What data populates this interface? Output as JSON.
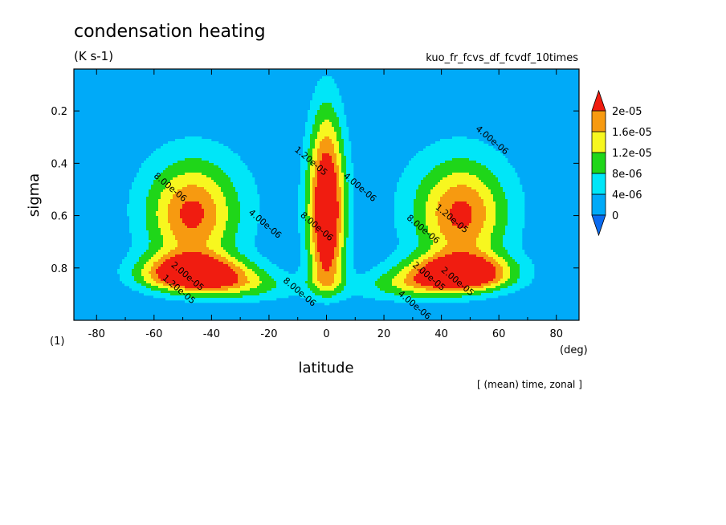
{
  "chart_data": {
    "type": "heatmap",
    "subtype": "filled-contour",
    "title": "condensation heating",
    "units": "(K s-1)",
    "experiment": "kuo_fr_fcvs_df_fcvdf_10times",
    "panel_label": "(1)",
    "footer": "[ (mean) time, zonal ]",
    "xlabel": "latitude",
    "xunits": "(deg)",
    "ylabel": "sigma",
    "xlim": [
      -87.9,
      87.9
    ],
    "ylim": [
      1.0,
      0.04
    ],
    "x_ticks": [
      -80,
      -60,
      -40,
      -20,
      0,
      20,
      40,
      60,
      80
    ],
    "x_tick_labels": [
      "-80",
      "-60",
      "-40",
      "-20",
      "0",
      "20",
      "40",
      "60",
      "80"
    ],
    "y_ticks": [
      0.2,
      0.4,
      0.6,
      0.8
    ],
    "y_tick_labels": [
      "0.2",
      "0.4",
      "0.6",
      "0.8"
    ],
    "colorbar": {
      "levels": [
        0,
        4e-06,
        8e-06,
        1.2e-05,
        1.6e-05,
        2e-05
      ],
      "labels": [
        "0",
        "4e-06",
        "8e-06",
        "1.2e-05",
        "1.6e-05",
        "2e-05"
      ],
      "colors": [
        "#0b6bf0",
        "#00aaf8",
        "#00e6f8",
        "#1fd619",
        "#f7f71f",
        "#f79a10",
        "#f01c10"
      ]
    },
    "contour_labels": [
      {
        "text": "4.00e-06",
        "lat": 57,
        "sigma": 0.32
      },
      {
        "text": "8.00e-06",
        "lat": -55,
        "sigma": 0.5
      },
      {
        "text": "4.00e-06",
        "lat": -22,
        "sigma": 0.64
      },
      {
        "text": "4.00e-06",
        "lat": 11,
        "sigma": 0.5
      },
      {
        "text": "8.00e-06",
        "lat": 33,
        "sigma": 0.66
      },
      {
        "text": "1.20e-05",
        "lat": 43,
        "sigma": 0.62
      },
      {
        "text": "2.00e-05",
        "lat": -49,
        "sigma": 0.84
      },
      {
        "text": "1.20e-05",
        "lat": -52,
        "sigma": 0.89
      },
      {
        "text": "2.00e-05",
        "lat": 35,
        "sigma": 0.84
      },
      {
        "text": "2.00e-05",
        "lat": 45,
        "sigma": 0.86
      },
      {
        "text": "4.00e-06",
        "lat": 30,
        "sigma": 0.95
      },
      {
        "text": "8.00e-06",
        "lat": -10,
        "sigma": 0.9
      },
      {
        "text": "1.20e-05",
        "lat": -6,
        "sigma": 0.4
      },
      {
        "text": "8.00e-06",
        "lat": -4,
        "sigma": 0.65
      }
    ]
  }
}
